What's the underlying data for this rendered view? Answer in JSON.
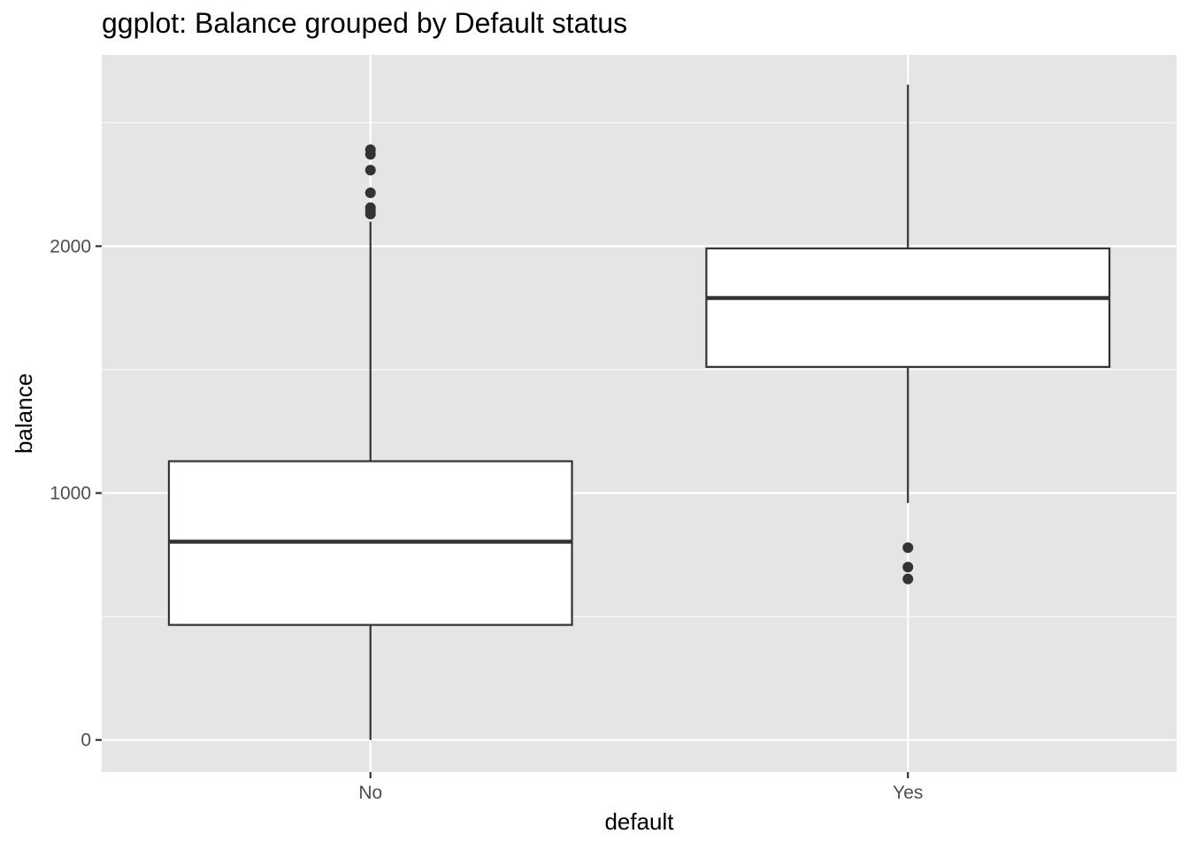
{
  "title": "ggplot: Balance grouped by Default status",
  "chart_data": {
    "type": "boxplot",
    "title": "ggplot: Balance grouped by Default status",
    "xlabel": "default",
    "ylabel": "balance",
    "categories": [
      "No",
      "Yes"
    ],
    "ylim": [
      -130,
      2775
    ],
    "yticks": [
      0,
      1000,
      2000
    ],
    "ytick_labels": [
      "0",
      "1000",
      "2000"
    ],
    "grid": true,
    "legend": "none",
    "boxes": [
      {
        "category": "No",
        "lower_whisker": 0,
        "q1": 466,
        "median": 803,
        "q3": 1129,
        "upper_whisker": 2100,
        "outliers": [
          2391,
          2372,
          2308,
          2216,
          2156,
          2144,
          2130
        ]
      },
      {
        "category": "Yes",
        "lower_whisker": 960,
        "q1": 1511,
        "median": 1790,
        "q3": 1991,
        "upper_whisker": 2654,
        "outliers": [
          779,
          700,
          652
        ]
      }
    ],
    "colors": {
      "panel": "#e5e5e5",
      "grid": "#ffffff",
      "box_fill": "#ffffff",
      "line": "#333333",
      "outlier": "#333333"
    }
  }
}
